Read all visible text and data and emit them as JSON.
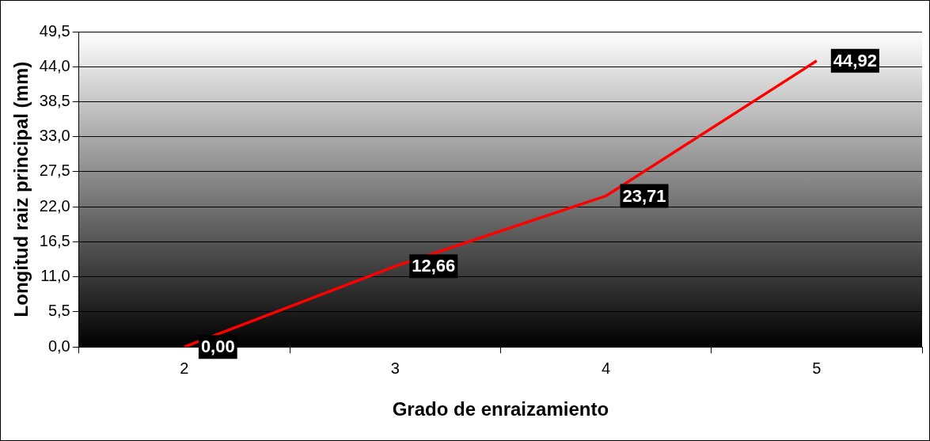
{
  "chart_data": {
    "type": "line",
    "xlabel": "Grado de enraizamiento",
    "ylabel": "Longitud raiz principal (mm)",
    "categories": [
      "2",
      "3",
      "4",
      "5"
    ],
    "series": [
      {
        "color": "#ff0000",
        "values": [
          0,
          12.66,
          23.71,
          44.92
        ]
      }
    ],
    "value_labels": [
      "0,00",
      "12,66",
      "23,71",
      "44,92"
    ],
    "ylim": [
      0,
      49.5
    ],
    "yticks": [
      {
        "value": 0,
        "label": "0,0"
      },
      {
        "value": 5.5,
        "label": "5,5"
      },
      {
        "value": 11,
        "label": "11,0"
      },
      {
        "value": 16.5,
        "label": "16,5"
      },
      {
        "value": 22,
        "label": "22,0"
      },
      {
        "value": 27.5,
        "label": "27,5"
      },
      {
        "value": 33,
        "label": "33,0"
      },
      {
        "value": 38.5,
        "label": "38,5"
      },
      {
        "value": 44,
        "label": "44,0"
      },
      {
        "value": 49.5,
        "label": "49,5"
      }
    ],
    "grid": "y",
    "legend": false,
    "marker": "none",
    "line_style": "solid"
  }
}
